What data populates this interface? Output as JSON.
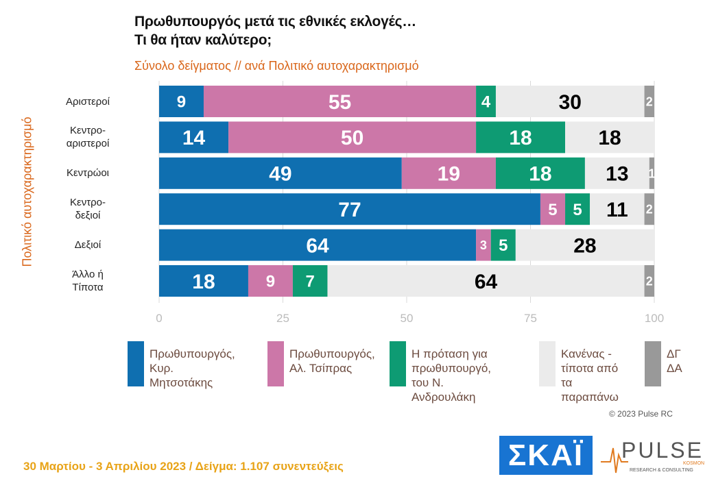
{
  "title_lines": [
    "Πρωθυπουργός μετά τις εθνικές εκλογές…",
    "Τι θα ήταν καλύτερο;"
  ],
  "subtitle": "Σύνολο δείγματος // ανά Πολιτικό αυτοχαρακτηρισμό",
  "copyright": "© 2023 Pulse RC",
  "footer": "30 Μαρτίου - 3  Απριλίου  2023  /  Δείγμα:  1.107 συνεντεύξεις",
  "logos": {
    "skai": "ΣΚΑΪ",
    "pulse": "PULSE",
    "pulse_sub": "RESEARCH & CONSULTING",
    "kosmon": "KOSMON"
  },
  "chart_data": {
    "type": "bar",
    "orientation": "horizontal",
    "stacked": true,
    "title": "Πρωθυπουργός μετά τις εθνικές εκλογές… Τι θα ήταν καλύτερο;",
    "ylabel": "Πολιτικό αυτοχαρακτηρισμό",
    "categories": [
      "Αριστεροί",
      "Κεντρο-\nαριστεροί",
      "Κεντρώοι",
      "Κεντρο-\nδεξιοί",
      "Δεξιοί",
      "Άλλο ή\nΤίποτα"
    ],
    "xlim": [
      0,
      100
    ],
    "xticks": [
      "0",
      "25",
      "50",
      "75",
      "100"
    ],
    "grid": true,
    "legend": "bottom",
    "series": [
      {
        "name": "Πρωθυπουργός,\nΚυρ. Μητσοτάκης",
        "color": "#0f6fb0",
        "label_color": "#ffffff",
        "values": [
          9,
          14,
          49,
          77,
          64,
          18
        ]
      },
      {
        "name": "Πρωθυπουργός,\nΑλ. Τσίπρας",
        "color": "#cc77a8",
        "label_color": "#ffffff",
        "values": [
          55,
          50,
          19,
          5,
          3,
          9
        ]
      },
      {
        "name": "Η πρόταση για\nπρωθυπουργό,\nτου Ν. Ανδρουλάκη",
        "color": "#0e9b73",
        "label_color": "#ffffff",
        "values": [
          4,
          18,
          18,
          5,
          5,
          7
        ]
      },
      {
        "name": "Κανένας -\nτίποτα από\nτα παραπάνω",
        "color": "#ebebeb",
        "label_color": "#000000",
        "values": [
          30,
          18,
          13,
          11,
          28,
          64
        ]
      },
      {
        "name": "ΔΓ\nΔΑ",
        "color": "#999999",
        "label_color": "#ffffff",
        "values": [
          2,
          0,
          1,
          2,
          0,
          2
        ]
      }
    ]
  }
}
